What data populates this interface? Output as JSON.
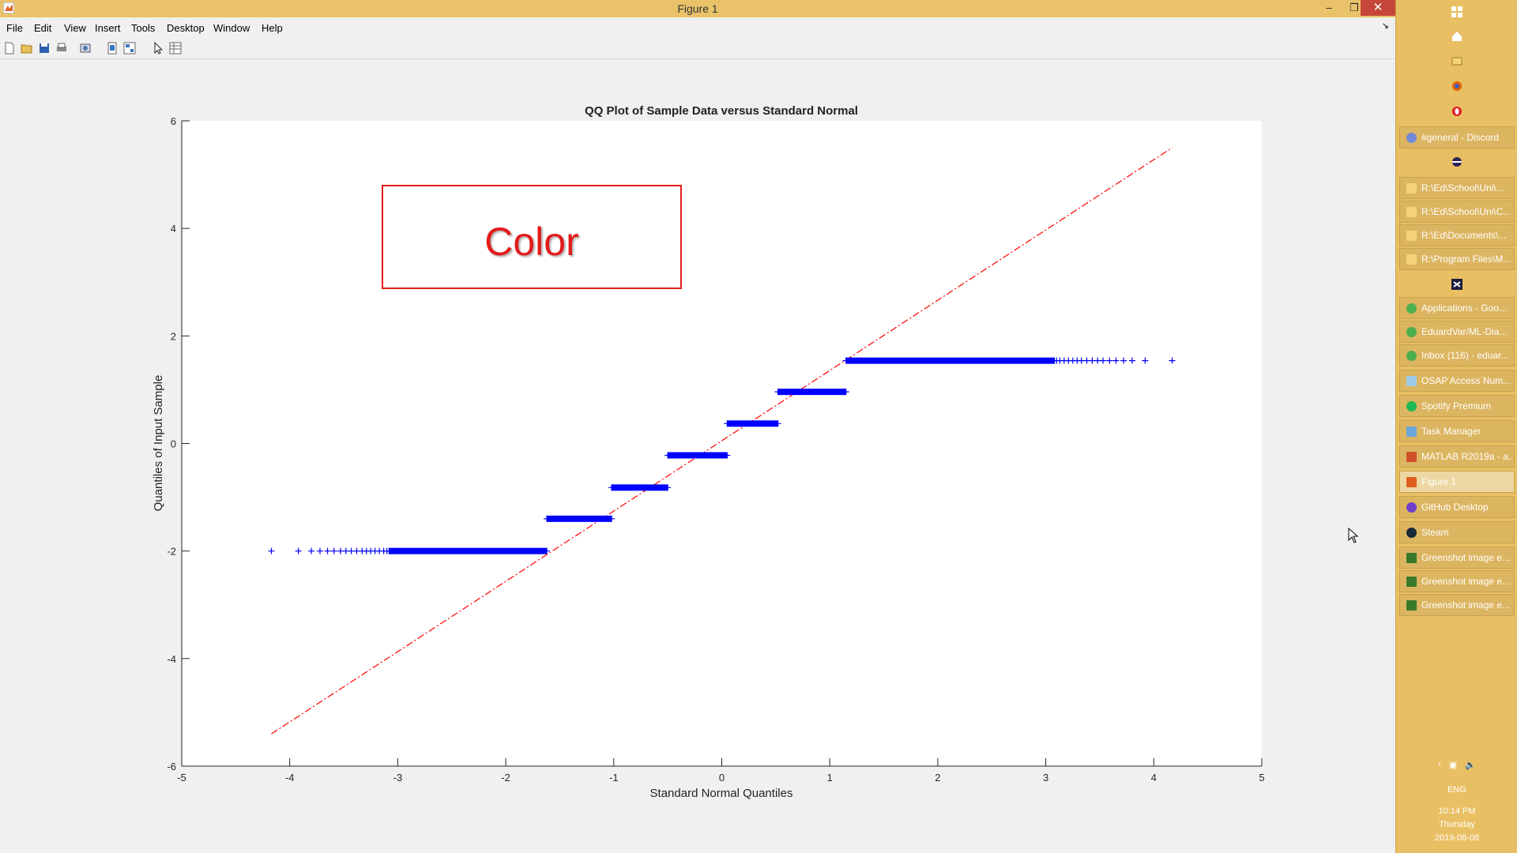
{
  "window": {
    "title": "Figure 1"
  },
  "menu": [
    "File",
    "Edit",
    "View",
    "Insert",
    "Tools",
    "Desktop",
    "Window",
    "Help"
  ],
  "toolbar_icons": [
    "new-figure-icon",
    "open-file-icon",
    "save-icon",
    "print-icon",
    "print-preview-icon",
    "link-plot-icon",
    "insert-colorbar-icon",
    "edit-plot-icon",
    "property-inspector-icon"
  ],
  "annotation": {
    "text": "Color",
    "color": "#e41b1b"
  },
  "chart_data": {
    "type": "scatter",
    "title": "QQ Plot of Sample Data versus Standard Normal",
    "xlabel": "Standard Normal Quantiles",
    "ylabel": "Quantiles of Input Sample",
    "xlim": [
      -5,
      5
    ],
    "ylim": [
      -6,
      6
    ],
    "xticks": [
      "-5",
      "-4",
      "-3",
      "-2",
      "-1",
      "0",
      "1",
      "2",
      "3",
      "4",
      "5"
    ],
    "yticks": [
      "-6",
      "-4",
      "-2",
      "0",
      "2",
      "4",
      "6"
    ],
    "grid": false,
    "series": [
      {
        "marker": "+",
        "color": "#0000ff",
        "segments": [
          {
            "y": -2.0,
            "x_start": -4.17,
            "x_end": -1.62
          },
          {
            "y": -1.4,
            "x_start": -1.62,
            "x_end": -1.02
          },
          {
            "y": -0.82,
            "x_start": -1.02,
            "x_end": -0.5
          },
          {
            "y": -0.22,
            "x_start": -0.5,
            "x_end": 0.05
          },
          {
            "y": 0.37,
            "x_start": 0.05,
            "x_end": 0.52
          },
          {
            "y": 0.96,
            "x_start": 0.52,
            "x_end": 1.15
          },
          {
            "y": 1.54,
            "x_start": 1.15,
            "x_end": 4.17
          }
        ]
      },
      {
        "type": "reference-line",
        "color": "#ff0000",
        "style": "dash-dot",
        "x": [
          -4.17,
          4.17
        ],
        "y": [
          -5.4,
          5.5
        ]
      }
    ]
  },
  "taskbar": {
    "tasks": [
      {
        "label": "#general - Discord",
        "icon": "discord-icon"
      },
      {
        "label": "R:\\Ed\\School\\Uni\\...",
        "icon": "folder-icon"
      },
      {
        "label": "R:\\Ed\\School\\Uni\\C...",
        "icon": "folder-icon"
      },
      {
        "label": "R:\\Ed\\Documents\\...",
        "icon": "folder-icon"
      },
      {
        "label": "R:\\Program Files\\M...",
        "icon": "folder-icon"
      },
      {
        "label": "Applications - Goo...",
        "icon": "chrome-icon"
      },
      {
        "label": "EduardVar/ML-Dia...",
        "icon": "chrome-icon"
      },
      {
        "label": "Inbox (116) - eduar...",
        "icon": "chrome-icon"
      },
      {
        "label": "OSAP Access Num...",
        "icon": "notepad-icon"
      },
      {
        "label": "Spotify Premium",
        "icon": "spotify-icon"
      },
      {
        "label": "Task Manager",
        "icon": "task-manager-icon"
      },
      {
        "label": "MATLAB R2019a - a...",
        "icon": "matlab-icon"
      },
      {
        "label": "Figure 1",
        "icon": "matlab-figure-icon",
        "active": true
      },
      {
        "label": "GitHub Desktop",
        "icon": "github-icon"
      },
      {
        "label": "Steam",
        "icon": "steam-icon"
      },
      {
        "label": "Greenshot image e...",
        "icon": "greenshot-icon"
      },
      {
        "label": "Greenshot image e...",
        "icon": "greenshot-icon"
      },
      {
        "label": "Greenshot image e...",
        "icon": "greenshot-icon"
      }
    ],
    "language": "ENG",
    "time": "10:14 PM",
    "day": "Thursday",
    "date": "2019-08-08"
  }
}
